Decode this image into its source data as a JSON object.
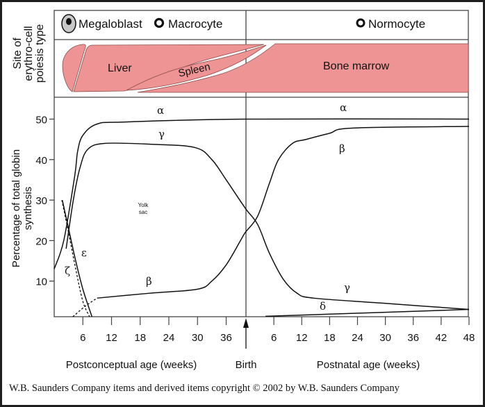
{
  "legend": {
    "megaloblast": "Megaloblast",
    "macrocyte": "Macrocyte",
    "normocyte": "Normocyte"
  },
  "site_axis_label": [
    "Site of",
    "erythro-cell",
    "poiesis type"
  ],
  "sites": {
    "liver": "Liver",
    "spleen": "Spleen",
    "bone_marrow": "Bone marrow",
    "yolk_sac": [
      "Yolk",
      "sac"
    ]
  },
  "colors": {
    "site_fill": "#ee9494",
    "line": "#111111"
  },
  "chart_data": {
    "type": "line",
    "title": "",
    "ylabel": [
      "Percentage of total globin",
      "synthesis"
    ],
    "xlabel_left": "Postconceptual age (weeks)",
    "xlabel_mid": "Birth",
    "xlabel_right": "Postnatal age (weeks)",
    "x_note": "x in weeks since conception for 0–40; postnatal weeks = x − 40",
    "ylim": [
      1.2,
      55
    ],
    "yticks": [
      "10",
      "20",
      "30",
      "40",
      "50"
    ],
    "xticks_left": [
      "6",
      "12",
      "18",
      "24",
      "30",
      "36"
    ],
    "xticks_right": [
      "6",
      "12",
      "18",
      "24",
      "30",
      "36",
      "42",
      "48"
    ],
    "xlim": [
      0,
      88
    ],
    "birth_week": 40,
    "series": [
      {
        "name": "α",
        "style": "solid",
        "points": [
          [
            0,
            13
          ],
          [
            2,
            20
          ],
          [
            4.3,
            36
          ],
          [
            4.9,
            42
          ],
          [
            6,
            46
          ],
          [
            9,
            48.8
          ],
          [
            15,
            49.3
          ],
          [
            40,
            50
          ],
          [
            88,
            50
          ]
        ]
      },
      {
        "name": "γ",
        "style": "solid",
        "points": [
          [
            2.5,
            18
          ],
          [
            4,
            30
          ],
          [
            5.4,
            38
          ],
          [
            7,
            42.5
          ],
          [
            10.5,
            44
          ],
          [
            20,
            43.8
          ],
          [
            29.4,
            43
          ],
          [
            33,
            40
          ],
          [
            36,
            35
          ],
          [
            40,
            28
          ],
          [
            42.5,
            24
          ],
          [
            45,
            17
          ],
          [
            48,
            10.5
          ],
          [
            51,
            7
          ],
          [
            54.5,
            5.8
          ],
          [
            70,
            4.5
          ],
          [
            88,
            3
          ]
        ]
      },
      {
        "name": "β",
        "style": "solid",
        "points": [
          [
            9,
            5.8
          ],
          [
            20,
            7
          ],
          [
            30,
            8
          ],
          [
            33,
            10
          ],
          [
            36,
            14
          ],
          [
            39,
            20
          ],
          [
            40,
            22
          ],
          [
            42.5,
            26
          ],
          [
            45,
            34
          ],
          [
            47,
            40
          ],
          [
            50,
            44
          ],
          [
            53,
            45
          ],
          [
            58,
            46.5
          ],
          [
            63,
            47.8
          ],
          [
            88,
            48.2
          ]
        ]
      },
      {
        "name": "β-early",
        "style": "dashed",
        "points": [
          [
            3.9,
            1.2
          ],
          [
            6.5,
            3.8
          ],
          [
            9,
            5.8
          ]
        ]
      },
      {
        "name": "ε",
        "style": "solid",
        "points": [
          [
            1.7,
            30
          ],
          [
            3,
            23
          ],
          [
            4.5,
            15
          ],
          [
            6,
            8
          ],
          [
            7.9,
            1.2
          ]
        ]
      },
      {
        "name": "ζ",
        "style": "dashed",
        "points": [
          [
            1.6,
            30
          ],
          [
            3,
            22
          ],
          [
            4.5,
            13
          ],
          [
            6,
            5
          ],
          [
            7.4,
            1.2
          ]
        ]
      },
      {
        "name": "δ",
        "style": "solid",
        "points": [
          [
            44.2,
            1.3
          ],
          [
            88,
            3
          ]
        ]
      }
    ],
    "labels": {
      "alpha": "α",
      "gamma": "γ",
      "beta": "β",
      "epsilon": "ε",
      "zeta": "ζ",
      "delta": "δ"
    }
  },
  "copyright": "W.B. Saunders Company items and derived items copyright © 2002 by W.B. Saunders Company"
}
